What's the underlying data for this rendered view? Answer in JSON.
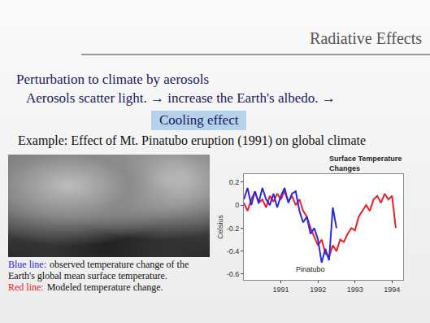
{
  "slide": {
    "header": "Radiative Effects",
    "heading": "Perturbation to climate by aerosols",
    "line1": "Aerosols scatter light. → increase the Earth's albedo. →",
    "highlight": "Cooling effect",
    "example": "Example: Effect of Mt. Pinatubo eruption (1991) on global climate",
    "caption": [
      {
        "label": "Blue line:",
        "text": "observed temperature change of the Earth's global mean surface temperature.",
        "color": "#2b2bd9"
      },
      {
        "label": "Red line:",
        "text": "Modeled temperature change.",
        "color": "#e8202a"
      }
    ]
  },
  "chart_data": {
    "type": "line",
    "title": "Surface Temperature Changes",
    "y_label": "Celsius",
    "x": [
      1990.0,
      1990.1,
      1990.2,
      1990.3,
      1990.4,
      1990.5,
      1990.6,
      1990.7,
      1990.8,
      1990.9,
      1991.0,
      1991.1,
      1991.2,
      1991.3,
      1991.4,
      1991.5,
      1991.6,
      1991.7,
      1991.8,
      1991.9,
      1992.0,
      1992.1,
      1992.2,
      1992.3,
      1992.4,
      1992.5,
      1992.6,
      1992.7,
      1992.8,
      1992.9,
      1993.0,
      1993.1,
      1993.2,
      1993.3,
      1993.4,
      1993.5,
      1993.6,
      1993.7,
      1993.8,
      1993.9,
      1994.0,
      1994.1
    ],
    "series": [
      {
        "color": "#e8202a",
        "values": [
          0.02,
          -0.05,
          0.05,
          0.12,
          0.02,
          0.05,
          -0.02,
          0.08,
          0.03,
          0.1,
          0.05,
          0.12,
          0.03,
          0.08,
          0.0,
          0.05,
          -0.05,
          -0.1,
          -0.2,
          -0.28,
          -0.35,
          -0.3,
          -0.42,
          -0.45,
          -0.35,
          -0.4,
          -0.3,
          -0.32,
          -0.25,
          -0.2,
          -0.22,
          -0.1,
          -0.05,
          0.0,
          -0.05,
          0.05,
          0.08,
          0.02,
          0.1,
          0.05,
          0.08,
          -0.2
        ]
      },
      {
        "color": "#2b2bd9",
        "values": [
          0.05,
          0.15,
          0.0,
          0.12,
          0.02,
          0.15,
          0.05,
          0.0,
          0.1,
          -0.02,
          0.08,
          0.15,
          0.02,
          0.1,
          0.12,
          -0.05,
          -0.15,
          -0.1,
          -0.25,
          -0.2,
          -0.3,
          -0.5,
          -0.38,
          -0.48,
          -0.02,
          -0.2,
          null,
          null,
          null,
          null,
          null,
          null,
          null,
          null,
          null,
          null,
          null,
          null,
          null,
          null,
          null,
          null
        ]
      }
    ],
    "xlim": [
      1990.0,
      1994.3
    ],
    "ylim": [
      -0.65,
      0.27
    ],
    "xticks": [
      1991,
      1992,
      1993,
      1994
    ],
    "yticks": [
      0.2,
      0,
      -0.2,
      -0.4,
      -0.6
    ],
    "annotations": [
      {
        "text": "Pinatubo",
        "x": 1991.8,
        "y": -0.56
      }
    ],
    "grid": false
  }
}
